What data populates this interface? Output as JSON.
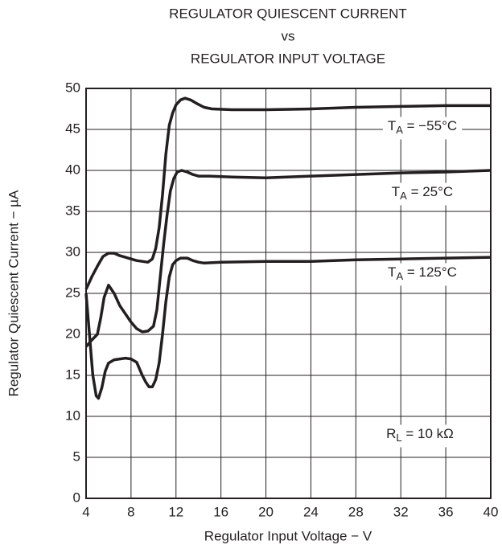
{
  "chart_data": {
    "type": "line",
    "title": [
      "REGULATOR QUIESCENT CURRENT",
      "vs",
      "REGULATOR INPUT VOLTAGE"
    ],
    "x_label": "Regulator Input Voltage − V",
    "y_label": "Regulator Quiescent Current − µA",
    "xlim": [
      4,
      40
    ],
    "xticks": [
      4,
      8,
      12,
      16,
      20,
      24,
      28,
      32,
      36,
      40
    ],
    "ylim": [
      0,
      50
    ],
    "yticks": [
      0,
      5,
      10,
      15,
      20,
      25,
      30,
      35,
      40,
      45,
      50
    ],
    "grid": true,
    "series": [
      {
        "label": {
          "symbol": "T",
          "subscript": "A",
          "text": " = −55°C"
        },
        "color": "#231f20",
        "x": [
          4,
          4.5,
          5,
          5.5,
          6,
          6.5,
          7,
          7.5,
          8,
          8.5,
          9,
          9.5,
          9.9,
          10.2,
          10.5,
          10.8,
          11.1,
          11.4,
          11.7,
          12,
          12.4,
          12.8,
          13.3,
          13.8,
          14.5,
          15.2,
          17,
          20,
          24,
          28,
          32,
          36,
          40
        ],
        "values": [
          25.5,
          27,
          28.3,
          29.5,
          29.9,
          29.9,
          29.6,
          29.4,
          29.2,
          29,
          28.9,
          28.8,
          29.2,
          30.5,
          33,
          37,
          42,
          45.5,
          47,
          48,
          48.6,
          48.8,
          48.6,
          48.2,
          47.7,
          47.5,
          47.4,
          47.4,
          47.5,
          47.7,
          47.8,
          47.9,
          47.9
        ]
      },
      {
        "label": {
          "symbol": "T",
          "subscript": "A",
          "text": " = 25°C"
        },
        "color": "#231f20",
        "x": [
          4,
          4.5,
          5,
          5.3,
          5.6,
          6,
          6.5,
          7,
          7.5,
          8,
          8.5,
          9,
          9.5,
          10,
          10.3,
          10.6,
          10.9,
          11.2,
          11.5,
          11.8,
          12.1,
          12.5,
          13,
          13.5,
          14,
          15,
          17,
          20,
          24,
          28,
          32,
          36,
          40
        ],
        "values": [
          18.5,
          19.3,
          20,
          22,
          24.5,
          26,
          25,
          23.5,
          22.5,
          21.5,
          20.7,
          20.3,
          20.4,
          21,
          23,
          27,
          31,
          34.5,
          37.5,
          39,
          39.8,
          40,
          39.8,
          39.5,
          39.3,
          39.3,
          39.2,
          39.1,
          39.3,
          39.5,
          39.7,
          39.8,
          40
        ]
      },
      {
        "label": {
          "symbol": "T",
          "subscript": "A",
          "text": " = 125°C"
        },
        "color": "#231f20",
        "x": [
          4,
          4.3,
          4.6,
          4.9,
          5.1,
          5.4,
          5.7,
          6,
          6.5,
          7,
          7.5,
          8,
          8.5,
          9,
          9.3,
          9.6,
          9.9,
          10.2,
          10.5,
          10.8,
          11.1,
          11.4,
          11.7,
          12,
          12.4,
          13,
          13.5,
          14,
          14.5,
          16,
          20,
          24,
          28,
          32,
          36,
          40
        ],
        "values": [
          25,
          20,
          15,
          12.5,
          12.2,
          13.5,
          15.5,
          16.5,
          16.9,
          17,
          17.1,
          17,
          16.6,
          15,
          14.2,
          13.6,
          13.6,
          14.5,
          16.5,
          20,
          24,
          27,
          28.5,
          29,
          29.3,
          29.3,
          29,
          28.8,
          28.7,
          28.8,
          28.9,
          28.9,
          29.1,
          29.2,
          29.3,
          29.4
        ]
      }
    ],
    "annotation": {
      "symbol": "R",
      "subscript": "L",
      "text": " = 10 kΩ"
    }
  }
}
